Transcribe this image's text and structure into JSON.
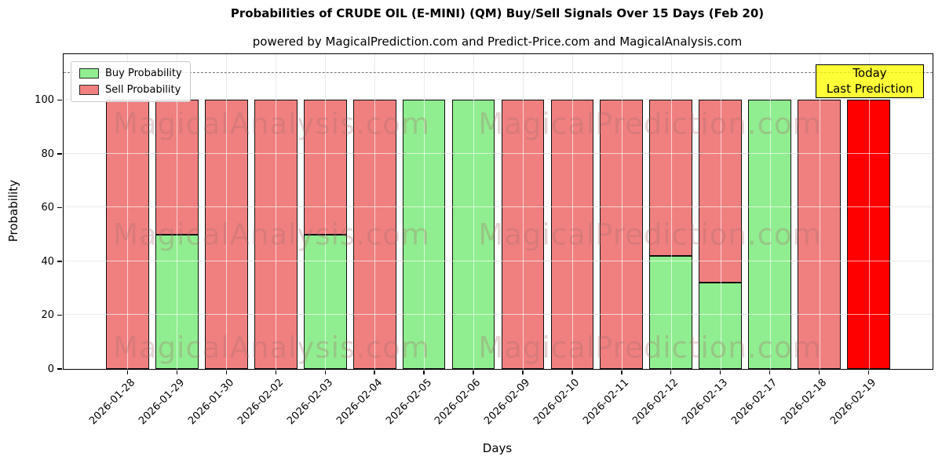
{
  "page": {
    "title": "Probabilities of CRUDE OIL (E-MINI) (QM) Buy/Sell Signals Over 15 Days (Feb 20)",
    "subtitle": "powered by MagicalPrediction.com and Predict-Price.com and MagicalAnalysis.com"
  },
  "axes": {
    "xlabel": "Days",
    "ylabel": "Probability",
    "yticks": [
      0,
      20,
      40,
      60,
      80,
      100
    ]
  },
  "legend": {
    "items": [
      {
        "label": "Buy Probability",
        "color": "#90ee90"
      },
      {
        "label": "Sell Probability",
        "color": "#f08080"
      }
    ]
  },
  "annotation": {
    "lines": [
      "Today",
      "Last Prediction"
    ],
    "bg_color": "#ffff00",
    "border_color": "#000000"
  },
  "watermarks": {
    "left": "MagicalAnalysis.com",
    "right": "MagicalPrediction.com"
  },
  "chart_data": {
    "type": "bar",
    "stacked": true,
    "title": "Probabilities of CRUDE OIL (E-MINI) (QM) Buy/Sell Signals Over 15 Days (Feb 20)",
    "xlabel": "Days",
    "ylabel": "Probability",
    "categories": [
      "2026-01-28",
      "2026-01-29",
      "2026-01-30",
      "2026-02-02",
      "2026-02-03",
      "2026-02-04",
      "2026-02-05",
      "2026-02-06",
      "2026-02-09",
      "2026-02-10",
      "2026-02-11",
      "2026-02-12",
      "2026-02-13",
      "2026-02-17",
      "2026-02-18",
      "2026-02-19"
    ],
    "series": [
      {
        "name": "Buy Probability",
        "color": "#90ee90",
        "values": [
          0,
          50,
          0,
          0,
          50,
          0,
          100,
          100,
          0,
          0,
          0,
          42,
          32,
          100,
          0,
          0
        ]
      },
      {
        "name": "Sell Probability",
        "color": "#f08080",
        "values": [
          100,
          50,
          100,
          100,
          50,
          100,
          0,
          0,
          100,
          100,
          100,
          58,
          68,
          0,
          100,
          0
        ]
      }
    ],
    "today_bar": {
      "category": "2026-02-19",
      "value": 100,
      "color": "#ff0000",
      "label": "Today Last Prediction"
    },
    "ylim": [
      0,
      117
    ],
    "dashed_line_y": 110,
    "grid": true,
    "legend_position": "upper left"
  }
}
